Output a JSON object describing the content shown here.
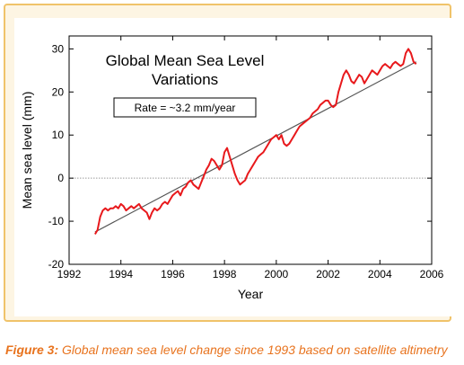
{
  "caption": {
    "label": "Figure 3:",
    "text": " Global mean sea level change since 1993 based on satellite altimetry"
  },
  "colors": {
    "frame_border": "#f0c36a",
    "frame_fill": "#fdf5e3",
    "series": "#e8191c",
    "trend": "#555555",
    "caption": "#e8731e"
  },
  "chart_data": {
    "type": "line",
    "title": "Global Mean Sea Level\nVariations",
    "annotation": "Rate = ~3.2 mm/year",
    "xlabel": "Year",
    "ylabel": "Mean sea level (mm)",
    "xlim": [
      1992,
      2006
    ],
    "ylim": [
      -20,
      33
    ],
    "xticks": [
      1992,
      1994,
      1996,
      1998,
      2000,
      2002,
      2004,
      2006
    ],
    "xtick_labels": [
      "1992",
      "1994",
      "1996",
      "1998",
      "2000",
      "2002",
      "2004",
      "2006"
    ],
    "yticks": [
      -20,
      -10,
      0,
      10,
      20,
      30
    ],
    "ytick_labels": [
      "-20",
      "-10",
      "0",
      "10",
      "20",
      "30"
    ],
    "grid": false,
    "zero_line": "dotted",
    "trend": {
      "x": [
        1993.0,
        2005.4
      ],
      "y": [
        -12.5,
        27
      ]
    },
    "series": [
      {
        "x": [
          1993.0,
          1993.1,
          1993.2,
          1993.3,
          1993.4,
          1993.5,
          1993.6,
          1993.7,
          1993.8,
          1993.9,
          1994.0,
          1994.1,
          1994.2,
          1994.3,
          1994.4,
          1994.5,
          1994.6,
          1994.7,
          1994.8,
          1994.9,
          1995.0,
          1995.1,
          1995.2,
          1995.3,
          1995.4,
          1995.5,
          1995.6,
          1995.7,
          1995.8,
          1995.9,
          1996.0,
          1996.1,
          1996.2,
          1996.3,
          1996.4,
          1996.5,
          1996.6,
          1996.7,
          1996.8,
          1996.9,
          1997.0,
          1997.1,
          1997.2,
          1997.3,
          1997.4,
          1997.5,
          1997.6,
          1997.7,
          1997.8,
          1997.9,
          1998.0,
          1998.1,
          1998.2,
          1998.3,
          1998.4,
          1998.5,
          1998.6,
          1998.7,
          1998.8,
          1998.9,
          1999.0,
          1999.1,
          1999.2,
          1999.3,
          1999.4,
          1999.5,
          1999.6,
          1999.7,
          1999.8,
          1999.9,
          2000.0,
          2000.1,
          2000.2,
          2000.3,
          2000.4,
          2000.5,
          2000.6,
          2000.7,
          2000.8,
          2000.9,
          2001.0,
          2001.1,
          2001.2,
          2001.3,
          2001.4,
          2001.5,
          2001.6,
          2001.7,
          2001.8,
          2001.9,
          2002.0,
          2002.1,
          2002.2,
          2002.3,
          2002.4,
          2002.5,
          2002.6,
          2002.7,
          2002.8,
          2002.9,
          2003.0,
          2003.1,
          2003.2,
          2003.3,
          2003.4,
          2003.5,
          2003.6,
          2003.7,
          2003.8,
          2003.9,
          2004.0,
          2004.1,
          2004.2,
          2004.3,
          2004.4,
          2004.5,
          2004.6,
          2004.7,
          2004.8,
          2004.9,
          2005.0,
          2005.1,
          2005.2,
          2005.3,
          2005.4
        ],
        "values": [
          -13,
          -12,
          -9,
          -7.5,
          -7,
          -7.5,
          -7,
          -7,
          -6.5,
          -7,
          -6,
          -6.5,
          -7.5,
          -7,
          -6.5,
          -7,
          -6.5,
          -6,
          -7,
          -7.5,
          -8,
          -9.5,
          -8,
          -7,
          -7.5,
          -7,
          -6,
          -5.5,
          -6,
          -5,
          -4,
          -3.5,
          -3,
          -4,
          -2.5,
          -2,
          -1,
          -0.5,
          -1.5,
          -2,
          -2.5,
          -1,
          0.5,
          2,
          3,
          4.5,
          4,
          3,
          2,
          3,
          6,
          7,
          5,
          3,
          1,
          -0.5,
          -1.5,
          -1,
          -0.5,
          1,
          2,
          3,
          4,
          5,
          5.5,
          6,
          7,
          8,
          9,
          9.5,
          10,
          9,
          10,
          8,
          7.5,
          8,
          9,
          10,
          11,
          12,
          12.5,
          13,
          13.5,
          14,
          15,
          15.5,
          16,
          17,
          17.5,
          18,
          18,
          17,
          16.5,
          17,
          20,
          22,
          24,
          25,
          24,
          22.5,
          22,
          23,
          24,
          23.5,
          22,
          23,
          24,
          25,
          24.5,
          24,
          25,
          26,
          26.5,
          26,
          25.5,
          26.5,
          27,
          26.5,
          26,
          26.5,
          29,
          30,
          29,
          27,
          26.5
        ]
      }
    ]
  }
}
